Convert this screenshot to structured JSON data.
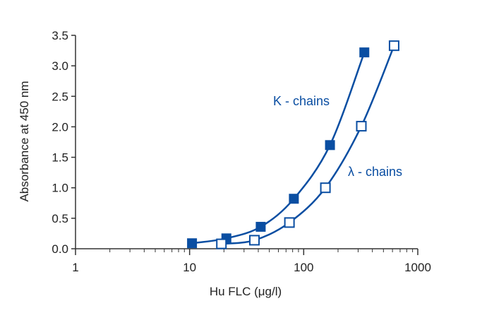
{
  "chart_data": {
    "type": "scatter",
    "xlabel": "Hu FLC (μg/l)",
    "ylabel": "Absorbance at 450 nm",
    "xscale": "log",
    "xlim": [
      1,
      1000
    ],
    "ylim": [
      0,
      3.5
    ],
    "xticks": [
      {
        "value": 1,
        "label": "1"
      },
      {
        "value": 10,
        "label": "10"
      },
      {
        "value": 100,
        "label": "100"
      },
      {
        "value": 1000,
        "label": "1000"
      }
    ],
    "yticks": [
      {
        "value": 0,
        "label": "0.0"
      },
      {
        "value": 0.5,
        "label": "0.5"
      },
      {
        "value": 1.0,
        "label": "1.0"
      },
      {
        "value": 1.5,
        "label": "1.5"
      },
      {
        "value": 2.0,
        "label": "2.0"
      },
      {
        "value": 2.5,
        "label": "2.5"
      },
      {
        "value": 3.0,
        "label": "3.0"
      },
      {
        "value": 3.5,
        "label": "3.5"
      }
    ],
    "grid": false,
    "color": "#0a4ea2",
    "series": [
      {
        "name": "Κ - chains",
        "marker": "filled-square",
        "fit": "smooth-curve",
        "points": [
          {
            "x": 10.5,
            "y": 0.09
          },
          {
            "x": 21,
            "y": 0.17
          },
          {
            "x": 42,
            "y": 0.36
          },
          {
            "x": 82,
            "y": 0.82
          },
          {
            "x": 170,
            "y": 1.7
          },
          {
            "x": 340,
            "y": 3.22
          }
        ]
      },
      {
        "name": "λ - chains",
        "marker": "open-square",
        "fit": "smooth-curve",
        "points": [
          {
            "x": 19,
            "y": 0.08
          },
          {
            "x": 37,
            "y": 0.14
          },
          {
            "x": 75,
            "y": 0.43
          },
          {
            "x": 155,
            "y": 1.0
          },
          {
            "x": 320,
            "y": 2.01
          },
          {
            "x": 620,
            "y": 3.33
          }
        ]
      }
    ]
  }
}
